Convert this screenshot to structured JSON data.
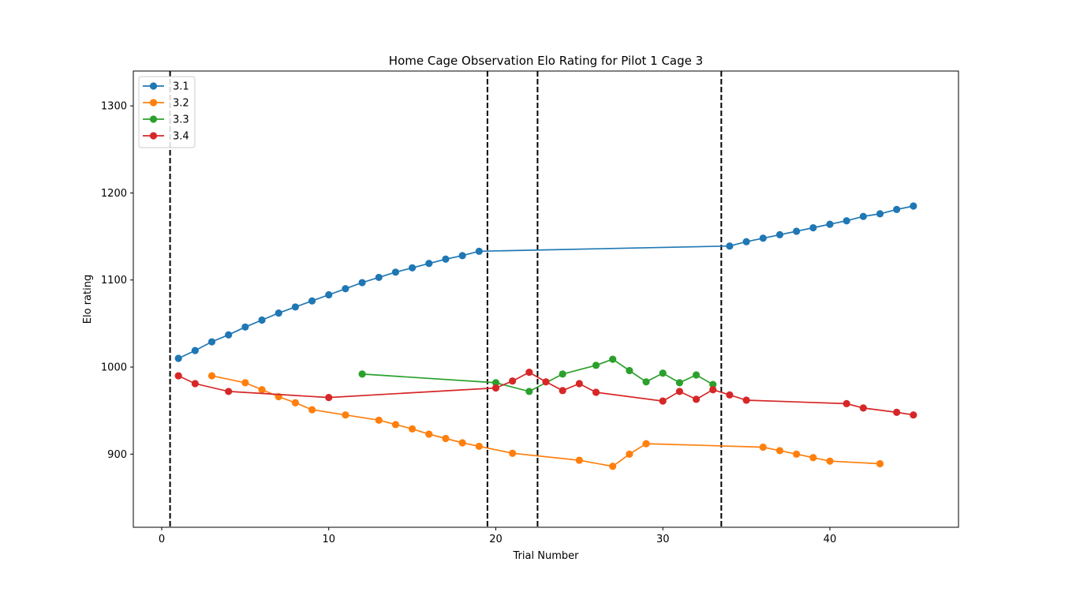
{
  "chart_data": {
    "type": "line",
    "title": "Home Cage Observation Elo Rating for Pilot 1 Cage 3",
    "xlabel": "Trial Number",
    "ylabel": "Elo rating",
    "xlim": [
      -1.7,
      47.7
    ],
    "ylim": [
      816,
      1340
    ],
    "xticks": [
      0,
      10,
      20,
      30,
      40
    ],
    "yticks": [
      900,
      1000,
      1100,
      1200,
      1300
    ],
    "grid": false,
    "legend_position": "top-left",
    "vlines": [
      0.5,
      19.5,
      22.5,
      33.5
    ],
    "vline_style": "dashed",
    "vline_color": "#000000",
    "series": [
      {
        "name": "3.1",
        "color": "#1f77b4",
        "x": [
          1,
          2,
          3,
          4,
          5,
          6,
          7,
          8,
          9,
          10,
          11,
          12,
          13,
          14,
          15,
          16,
          17,
          18,
          19,
          34,
          35,
          36,
          37,
          38,
          39,
          40,
          41,
          42,
          43,
          44,
          45
        ],
        "y": [
          1010,
          1019,
          1029,
          1037,
          1046,
          1054,
          1062,
          1069,
          1076,
          1083,
          1090,
          1097,
          1103,
          1109,
          1114,
          1119,
          1124,
          1128,
          1133,
          1139,
          1144,
          1148,
          1152,
          1156,
          1160,
          1164,
          1168,
          1173,
          1176,
          1181,
          1185
        ]
      },
      {
        "name": "3.2",
        "color": "#ff7f0e",
        "x": [
          3,
          5,
          6,
          7,
          8,
          9,
          11,
          13,
          14,
          15,
          16,
          17,
          18,
          19,
          21,
          25,
          27,
          28,
          29,
          36,
          37,
          38,
          39,
          40,
          43
        ],
        "y": [
          990,
          982,
          974,
          966,
          959,
          951,
          945,
          939,
          934,
          929,
          923,
          918,
          913,
          909,
          901,
          893,
          886,
          900,
          912,
          908,
          904,
          900,
          896,
          892,
          889
        ]
      },
      {
        "name": "3.3",
        "color": "#2ca02c",
        "x": [
          12,
          20,
          22,
          24,
          26,
          27,
          28,
          29,
          30,
          31,
          32,
          33
        ],
        "y": [
          992,
          982,
          972,
          992,
          1002,
          1009,
          996,
          983,
          993,
          982,
          991,
          980
        ]
      },
      {
        "name": "3.4",
        "color": "#d62728",
        "x": [
          1,
          2,
          4,
          10,
          20,
          21,
          22,
          23,
          24,
          25,
          26,
          30,
          31,
          32,
          33,
          34,
          35,
          41,
          42,
          44,
          45
        ],
        "y": [
          990,
          981,
          972,
          965,
          976,
          984,
          994,
          983,
          973,
          981,
          971,
          961,
          972,
          963,
          974,
          968,
          962,
          958,
          953,
          948,
          945
        ]
      }
    ]
  }
}
